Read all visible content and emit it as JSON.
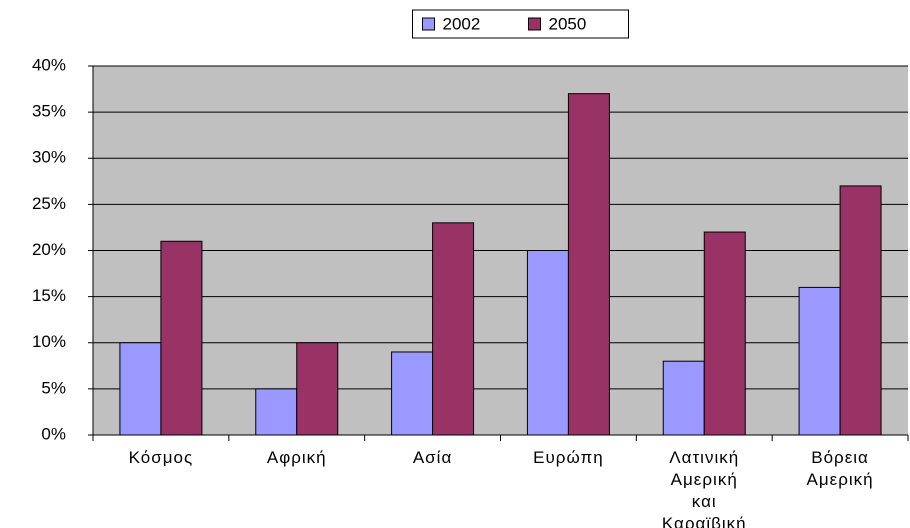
{
  "chart_data": {
    "type": "bar",
    "categories": [
      "Κόσμος",
      "Αφρική",
      "Ασία",
      "Ευρώπη",
      "Λατινική\nΑμερική\nκαι\nΚαραϊβική",
      "Βόρεια\nΑμερική"
    ],
    "series": [
      {
        "name": "2002",
        "color": "#9999ff",
        "values": [
          10,
          5,
          9,
          20,
          8,
          16
        ]
      },
      {
        "name": "2050",
        "color": "#993366",
        "values": [
          21,
          10,
          23,
          37,
          22,
          27
        ]
      }
    ],
    "ylim": [
      0,
      40
    ],
    "yticks": [
      {
        "value": 0,
        "label": "0%"
      },
      {
        "value": 5,
        "label": "5%"
      },
      {
        "value": 10,
        "label": "10%"
      },
      {
        "value": 15,
        "label": "15%"
      },
      {
        "value": 20,
        "label": "20%"
      },
      {
        "value": 25,
        "label": "25%"
      },
      {
        "value": 30,
        "label": "30%"
      },
      {
        "value": 35,
        "label": "35%"
      },
      {
        "value": 40,
        "label": "40%"
      }
    ],
    "grid": true,
    "legend": "top"
  }
}
